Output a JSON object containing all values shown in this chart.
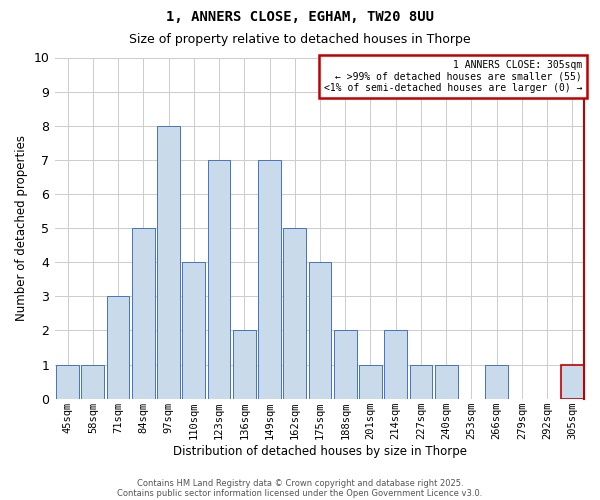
{
  "title_line1": "1, ANNERS CLOSE, EGHAM, TW20 8UU",
  "title_line2": "Size of property relative to detached houses in Thorpe",
  "xlabel": "Distribution of detached houses by size in Thorpe",
  "ylabel": "Number of detached properties",
  "footer_line1": "Contains HM Land Registry data © Crown copyright and database right 2025.",
  "footer_line2": "Contains public sector information licensed under the Open Government Licence v3.0.",
  "categories": [
    "45sqm",
    "58sqm",
    "71sqm",
    "84sqm",
    "97sqm",
    "110sqm",
    "123sqm",
    "136sqm",
    "149sqm",
    "162sqm",
    "175sqm",
    "188sqm",
    "201sqm",
    "214sqm",
    "227sqm",
    "240sqm",
    "253sqm",
    "266sqm",
    "279sqm",
    "292sqm",
    "305sqm"
  ],
  "values": [
    1,
    1,
    3,
    5,
    8,
    4,
    7,
    2,
    7,
    5,
    4,
    2,
    1,
    2,
    1,
    1,
    0,
    1,
    0,
    0,
    1
  ],
  "highlight_index": 20,
  "bar_color_normal": "#c9daea",
  "bar_edge_color": "#4472c4",
  "highlight_edge_color": "#c00000",
  "ylim": [
    0,
    10
  ],
  "yticks": [
    0,
    1,
    2,
    3,
    4,
    5,
    6,
    7,
    8,
    9,
    10
  ],
  "legend_title": "1 ANNERS CLOSE: 305sqm",
  "legend_line2": "← >99% of detached houses are smaller (55)",
  "legend_line3": "<1% of semi-detached houses are larger (0) →",
  "legend_box_color": "#c00000",
  "grid_color": "#cccccc",
  "background_color": "#ffffff"
}
